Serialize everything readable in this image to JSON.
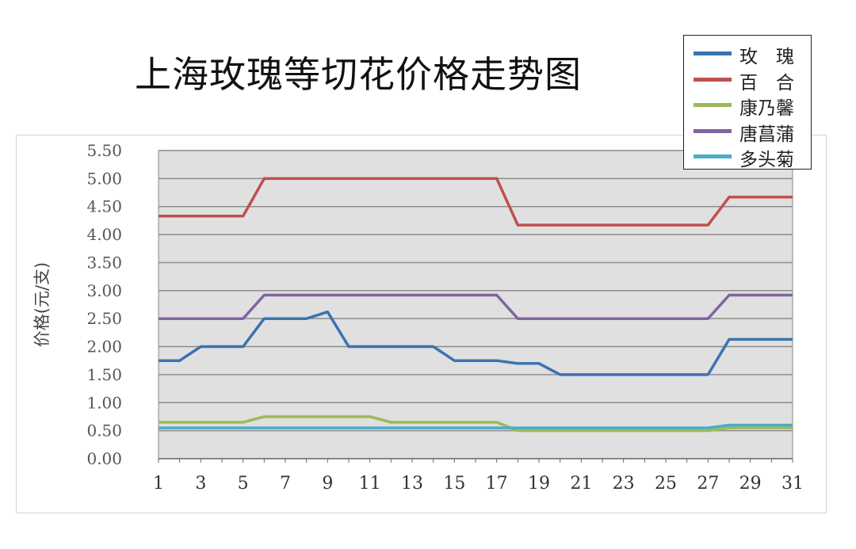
{
  "chart_data": {
    "type": "line",
    "title": "上海玫瑰等切花价格走势图",
    "ylabel": "价格(元/支)",
    "xlabel": "",
    "xlim": [
      1,
      31
    ],
    "ylim": [
      0,
      5.5
    ],
    "yticks": [
      "0.00",
      "0.50",
      "1.00",
      "1.50",
      "2.00",
      "2.50",
      "3.00",
      "3.50",
      "4.00",
      "4.50",
      "5.00",
      "5.50"
    ],
    "xticks": [
      1,
      3,
      5,
      7,
      9,
      11,
      13,
      15,
      17,
      19,
      21,
      23,
      25,
      27,
      29,
      31
    ],
    "grid": true,
    "legend_position": "top-right",
    "x": [
      1,
      2,
      3,
      4,
      5,
      6,
      7,
      8,
      9,
      10,
      11,
      12,
      13,
      14,
      15,
      16,
      17,
      18,
      19,
      20,
      21,
      22,
      23,
      24,
      25,
      26,
      27,
      28,
      29,
      30,
      31
    ],
    "series": [
      {
        "name": "玫　瑰",
        "color": "#3b73b0",
        "values": [
          1.75,
          1.75,
          2.0,
          2.0,
          2.0,
          2.5,
          2.5,
          2.5,
          2.62,
          2.0,
          2.0,
          2.0,
          2.0,
          2.0,
          1.75,
          1.75,
          1.75,
          1.7,
          1.7,
          1.5,
          1.5,
          1.5,
          1.5,
          1.5,
          1.5,
          1.5,
          1.5,
          2.13,
          2.13,
          2.13,
          2.13
        ]
      },
      {
        "name": "百　合",
        "color": "#c0504d",
        "values": [
          4.33,
          4.33,
          4.33,
          4.33,
          4.33,
          5.0,
          5.0,
          5.0,
          5.0,
          5.0,
          5.0,
          5.0,
          5.0,
          5.0,
          5.0,
          5.0,
          5.0,
          4.17,
          4.17,
          4.17,
          4.17,
          4.17,
          4.17,
          4.17,
          4.17,
          4.17,
          4.17,
          4.67,
          4.67,
          4.67,
          4.67
        ]
      },
      {
        "name": "康乃馨",
        "color": "#9bbb59",
        "values": [
          0.65,
          0.65,
          0.65,
          0.65,
          0.65,
          0.75,
          0.75,
          0.75,
          0.75,
          0.75,
          0.75,
          0.65,
          0.65,
          0.65,
          0.65,
          0.65,
          0.65,
          0.5,
          0.5,
          0.5,
          0.5,
          0.5,
          0.5,
          0.5,
          0.5,
          0.5,
          0.5,
          0.55,
          0.55,
          0.55,
          0.55
        ]
      },
      {
        "name": "唐菖蒲",
        "color": "#8064a2",
        "values": [
          2.5,
          2.5,
          2.5,
          2.5,
          2.5,
          2.92,
          2.92,
          2.92,
          2.92,
          2.92,
          2.92,
          2.92,
          2.92,
          2.92,
          2.92,
          2.92,
          2.92,
          2.5,
          2.5,
          2.5,
          2.5,
          2.5,
          2.5,
          2.5,
          2.5,
          2.5,
          2.5,
          2.92,
          2.92,
          2.92,
          2.92
        ]
      },
      {
        "name": "多头菊",
        "color": "#4bacc6",
        "values": [
          0.55,
          0.55,
          0.55,
          0.55,
          0.55,
          0.55,
          0.55,
          0.55,
          0.55,
          0.55,
          0.55,
          0.55,
          0.55,
          0.55,
          0.55,
          0.55,
          0.55,
          0.55,
          0.55,
          0.55,
          0.55,
          0.55,
          0.55,
          0.55,
          0.55,
          0.55,
          0.55,
          0.6,
          0.6,
          0.6,
          0.6
        ]
      }
    ]
  }
}
